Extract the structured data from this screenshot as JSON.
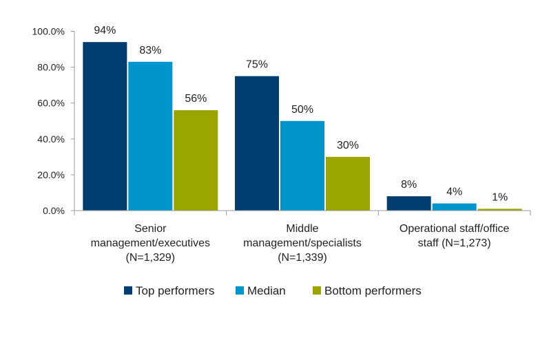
{
  "chart_data": {
    "type": "bar",
    "categories": [
      [
        "Senior",
        "management/executives",
        "(N=1,329)"
      ],
      [
        "Middle",
        "management/specialists",
        "(N=1,339)"
      ],
      [
        "Operational staff/office",
        "staff (N=1,273)"
      ]
    ],
    "series": [
      {
        "name": "Top performers",
        "color": "#003e6f",
        "values": [
          94,
          75,
          8
        ],
        "labels": [
          "94%",
          "75%",
          "8%"
        ]
      },
      {
        "name": "Median",
        "color": "#0096cd",
        "values": [
          83,
          50,
          4
        ],
        "labels": [
          "83%",
          "50%",
          "4%"
        ]
      },
      {
        "name": "Bottom performers",
        "color": "#9aa500",
        "values": [
          56,
          30,
          1
        ],
        "labels": [
          "56%",
          "30%",
          "1%"
        ]
      }
    ],
    "yaxis": {
      "ticks": [
        0,
        20,
        40,
        60,
        80,
        100
      ],
      "tick_labels": [
        "0.0%",
        "20.0%",
        "40.0%",
        "60.0%",
        "80.0%",
        "100.0%"
      ],
      "ylim": [
        0,
        100
      ]
    },
    "legend_position": "bottom",
    "grid": false
  }
}
